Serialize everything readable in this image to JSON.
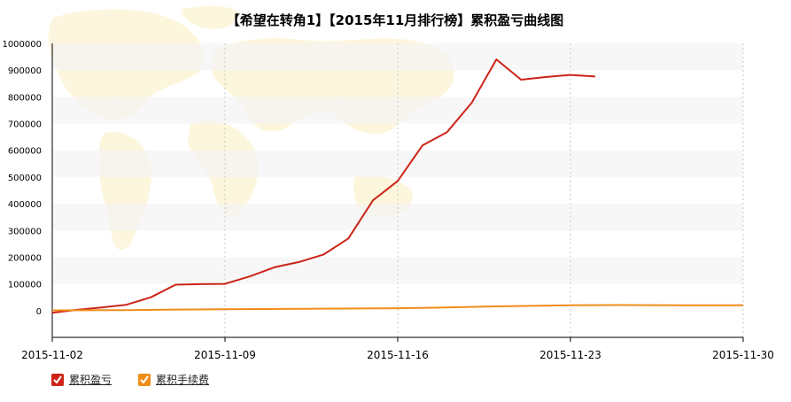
{
  "chart_data": {
    "type": "line",
    "title": "【希望在转角1】【2015年11月排行榜】累积盈亏曲线图",
    "xlabel": "",
    "ylabel": "",
    "xlim": [
      "2015-11-02",
      "2015-11-30"
    ],
    "ylim": [
      -100000,
      1000000
    ],
    "yticks": [
      1000000,
      900000,
      800000,
      700000,
      600000,
      500000,
      400000,
      300000,
      200000,
      100000,
      0
    ],
    "ytick_labels": [
      "1000000",
      "900000",
      "800000",
      "700000",
      "600000",
      "500000",
      "400000",
      "300000",
      "200000",
      "100000",
      "0"
    ],
    "xticks": [
      "2015-11-02",
      "2015-11-09",
      "2015-11-16",
      "2015-11-23",
      "2015-11-30"
    ],
    "grid": true,
    "legend_position": "bottom-left",
    "series": [
      {
        "name": "累积盈亏",
        "color": "#cc2418",
        "points": [
          [
            "2015-11-02",
            -8000
          ],
          [
            "2015-11-03",
            3000
          ],
          [
            "2015-11-04",
            12000
          ],
          [
            "2015-11-05",
            22000
          ],
          [
            "2015-11-06",
            50000
          ],
          [
            "2015-11-07",
            97000
          ],
          [
            "2015-11-08",
            99000
          ],
          [
            "2015-11-09",
            100000
          ],
          [
            "2015-11-10",
            128000
          ],
          [
            "2015-11-11",
            162000
          ],
          [
            "2015-11-12",
            182000
          ],
          [
            "2015-11-13",
            210000
          ],
          [
            "2015-11-14",
            270000
          ],
          [
            "2015-11-15",
            413000
          ],
          [
            "2015-11-16",
            485000
          ],
          [
            "2015-11-17",
            618000
          ],
          [
            "2015-11-18",
            668000
          ],
          [
            "2015-11-19",
            778000
          ],
          [
            "2015-11-20",
            940000
          ],
          [
            "2015-11-21",
            864000
          ],
          [
            "2015-11-22",
            874000
          ],
          [
            "2015-11-23",
            882000
          ],
          [
            "2015-11-24",
            876000
          ]
        ]
      },
      {
        "name": "累积手续费",
        "color": "#f08c18",
        "points": [
          [
            "2015-11-02",
            1000
          ],
          [
            "2015-11-05",
            2000
          ],
          [
            "2015-11-07",
            4000
          ],
          [
            "2015-11-09",
            5000
          ],
          [
            "2015-11-12",
            7000
          ],
          [
            "2015-11-16",
            9000
          ],
          [
            "2015-11-18",
            12000
          ],
          [
            "2015-11-20",
            16000
          ],
          [
            "2015-11-23",
            20000
          ],
          [
            "2015-11-25",
            21000
          ],
          [
            "2015-11-28",
            20000
          ],
          [
            "2015-11-30",
            20000
          ]
        ]
      }
    ]
  }
}
